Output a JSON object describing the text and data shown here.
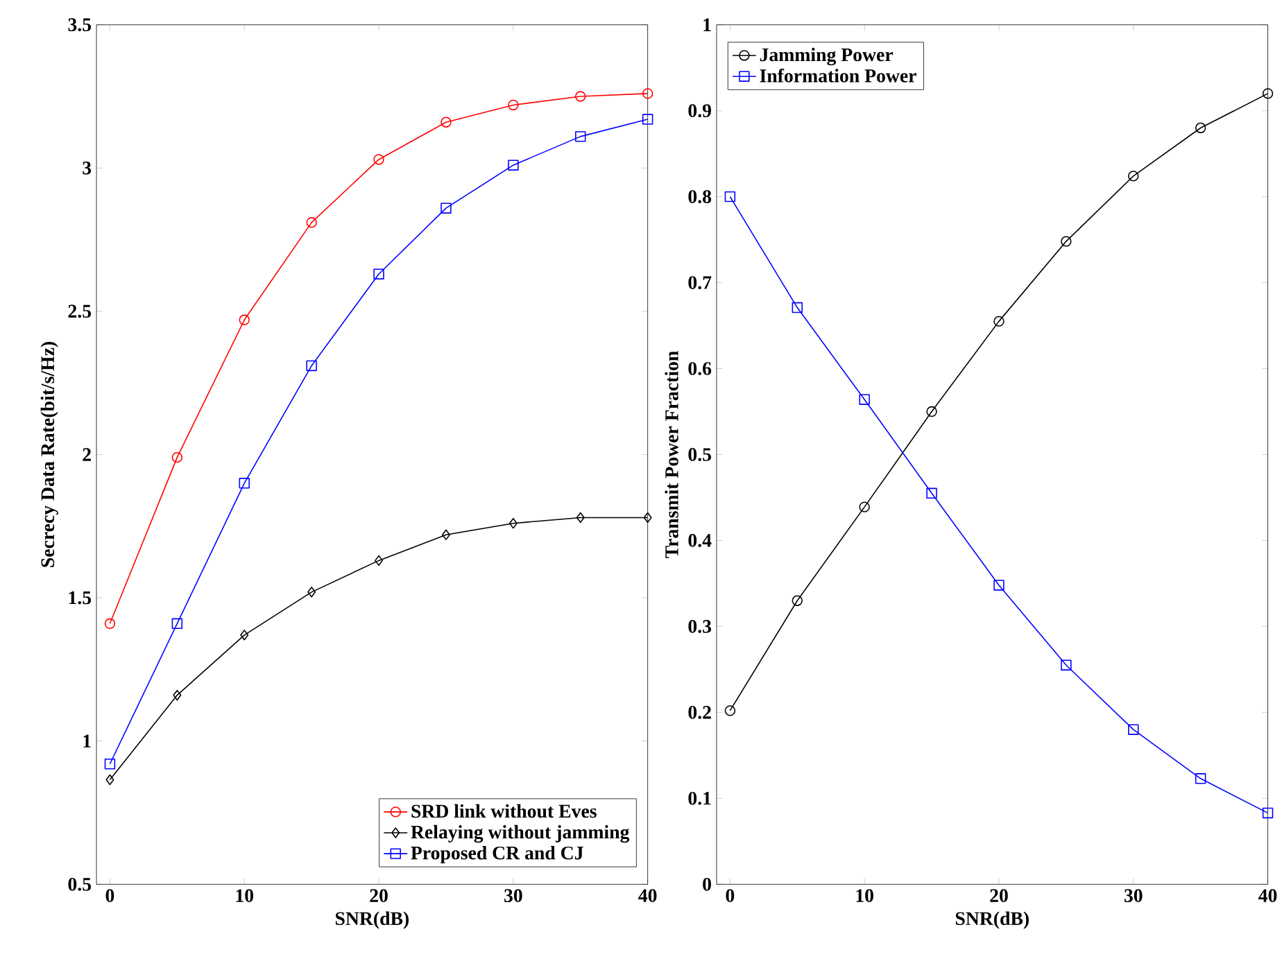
{
  "chart_data": [
    {
      "type": "line",
      "xlabel": "SNR(dB)",
      "ylabel": "Secrecy Data Rate(bit/s/Hz)",
      "x": [
        0,
        5,
        10,
        15,
        20,
        25,
        30,
        35,
        40
      ],
      "xlim": [
        -1,
        40
      ],
      "xticks": [
        0,
        10,
        20,
        30,
        40
      ],
      "ylim": [
        0.5,
        3.5
      ],
      "yticks": [
        0.5,
        1,
        1.5,
        2,
        2.5,
        3,
        3.5
      ],
      "legend": "bottom right",
      "grid": false,
      "series": [
        {
          "name": "SRD link without Eves",
          "color": "#ff0000",
          "marker": "circle",
          "values": [
            1.41,
            1.99,
            2.47,
            2.81,
            3.03,
            3.16,
            3.22,
            3.25,
            3.26
          ]
        },
        {
          "name": "Relaying without jamming",
          "color": "#000000",
          "marker": "diamond",
          "values": [
            0.865,
            1.16,
            1.37,
            1.52,
            1.63,
            1.72,
            1.76,
            1.78,
            1.78
          ]
        },
        {
          "name": "Proposed CR and CJ",
          "color": "#0000ff",
          "marker": "square",
          "values": [
            0.92,
            1.41,
            1.9,
            2.31,
            2.63,
            2.86,
            3.01,
            3.11,
            3.17
          ]
        }
      ]
    },
    {
      "type": "line",
      "xlabel": "SNR(dB)",
      "ylabel": "Transmit Power Fraction",
      "x": [
        0,
        5,
        10,
        15,
        20,
        25,
        30,
        35,
        40
      ],
      "xlim": [
        -1,
        40
      ],
      "xticks": [
        0,
        10,
        20,
        30,
        40
      ],
      "ylim": [
        0,
        1
      ],
      "yticks": [
        0,
        0.1,
        0.2,
        0.3,
        0.4,
        0.5,
        0.6,
        0.7,
        0.8,
        0.9,
        1
      ],
      "legend": "top left",
      "grid": false,
      "series": [
        {
          "name": "Jamming Power",
          "color": "#000000",
          "marker": "circle",
          "values": [
            0.202,
            0.33,
            0.439,
            0.55,
            0.655,
            0.748,
            0.824,
            0.88,
            0.92
          ]
        },
        {
          "name": "Information Power",
          "color": "#0000ff",
          "marker": "square",
          "values": [
            0.8,
            0.671,
            0.564,
            0.455,
            0.348,
            0.255,
            0.18,
            0.123,
            0.083
          ]
        }
      ]
    }
  ]
}
